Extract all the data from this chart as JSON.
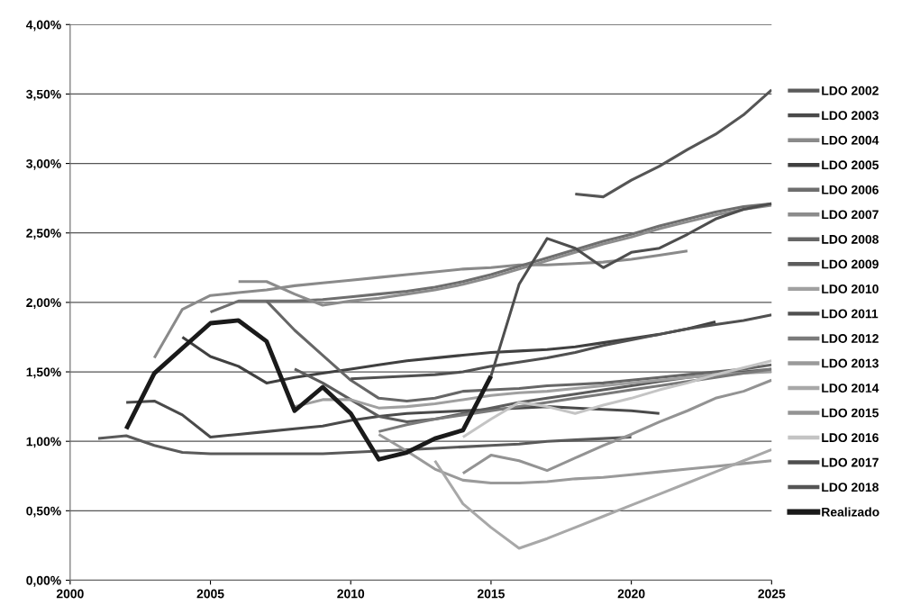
{
  "chart_data": {
    "type": "line",
    "xlim": [
      2000,
      2025
    ],
    "xticks": [
      2000,
      2005,
      2010,
      2015,
      2020,
      2025
    ],
    "ylim": [
      0,
      4
    ],
    "yticks": [
      {
        "value": 0,
        "label": "0,00%"
      },
      {
        "value": 0.5,
        "label": "0,50%"
      },
      {
        "value": 1,
        "label": "1,00%"
      },
      {
        "value": 1.5,
        "label": "1,50%"
      },
      {
        "value": 2,
        "label": "2,00%"
      },
      {
        "value": 2.5,
        "label": "2,50%"
      },
      {
        "value": 3,
        "label": "3,00%"
      },
      {
        "value": 3.5,
        "label": "3,50%"
      },
      {
        "value": 4,
        "label": "4,00%"
      }
    ],
    "grid": "y",
    "legend": "right",
    "marker": "none",
    "line_style": "solid",
    "series": [
      {
        "name": "LDO 2002",
        "color": "#5a5a5a",
        "x": [
          2001,
          2002,
          2003,
          2004,
          2005,
          2006,
          2007,
          2008,
          2009,
          2010,
          2011,
          2012,
          2013,
          2014,
          2015,
          2016,
          2017,
          2018,
          2019,
          2020
        ],
        "values": [
          1.02,
          1.04,
          0.97,
          0.92,
          0.91,
          0.91,
          0.91,
          0.91,
          0.91,
          0.92,
          0.93,
          0.94,
          0.95,
          0.96,
          0.97,
          0.98,
          1.0,
          1.01,
          1.02,
          1.03
        ]
      },
      {
        "name": "LDO 2003",
        "color": "#4a4a4a",
        "x": [
          2002,
          2003,
          2004,
          2005,
          2006,
          2007,
          2008,
          2009,
          2010,
          2011,
          2012,
          2013,
          2014,
          2015,
          2016,
          2017,
          2018,
          2019,
          2020,
          2021
        ],
        "values": [
          1.28,
          1.29,
          1.19,
          1.03,
          1.05,
          1.07,
          1.09,
          1.11,
          1.15,
          1.18,
          1.2,
          1.21,
          1.22,
          1.23,
          1.24,
          1.25,
          1.24,
          1.23,
          1.22,
          1.2
        ]
      },
      {
        "name": "LDO 2004",
        "color": "#8a8a8a",
        "x": [
          2003,
          2004,
          2005,
          2006,
          2007,
          2008,
          2009,
          2010,
          2011,
          2012,
          2013,
          2014,
          2015,
          2016,
          2017,
          2018,
          2019,
          2020,
          2021,
          2022
        ],
        "values": [
          1.6,
          1.95,
          2.05,
          2.07,
          2.09,
          2.12,
          2.14,
          2.16,
          2.18,
          2.2,
          2.22,
          2.24,
          2.25,
          2.27,
          2.27,
          2.28,
          2.29,
          2.31,
          2.34,
          2.37
        ]
      },
      {
        "name": "LDO 2005",
        "color": "#404040",
        "x": [
          2004,
          2005,
          2006,
          2007,
          2008,
          2009,
          2010,
          2011,
          2012,
          2013,
          2014,
          2015,
          2016,
          2017,
          2018,
          2019,
          2020,
          2021,
          2022,
          2023
        ],
        "values": [
          1.75,
          1.61,
          1.54,
          1.42,
          1.46,
          1.49,
          1.52,
          1.55,
          1.58,
          1.6,
          1.62,
          1.64,
          1.65,
          1.66,
          1.68,
          1.71,
          1.74,
          1.77,
          1.81,
          1.86
        ]
      },
      {
        "name": "LDO 2006",
        "color": "#6e6e6e",
        "x": [
          2005,
          2006,
          2007,
          2008,
          2009,
          2010,
          2011,
          2012,
          2013,
          2014,
          2015,
          2016,
          2017,
          2018,
          2019,
          2020,
          2021,
          2022,
          2023,
          2024,
          2025
        ],
        "values": [
          1.93,
          2.01,
          2.01,
          2.01,
          2.02,
          2.04,
          2.06,
          2.08,
          2.11,
          2.15,
          2.2,
          2.26,
          2.32,
          2.38,
          2.44,
          2.49,
          2.55,
          2.6,
          2.65,
          2.69,
          2.71
        ]
      },
      {
        "name": "LDO 2007",
        "color": "#8c8c8c",
        "x": [
          2006,
          2007,
          2008,
          2009,
          2010,
          2011,
          2012,
          2013,
          2014,
          2015,
          2016,
          2017,
          2018,
          2019,
          2020,
          2021,
          2022,
          2023,
          2024,
          2025
        ],
        "values": [
          2.15,
          2.15,
          2.06,
          1.98,
          2.01,
          2.03,
          2.06,
          2.09,
          2.13,
          2.18,
          2.24,
          2.3,
          2.36,
          2.42,
          2.47,
          2.53,
          2.58,
          2.63,
          2.67,
          2.7
        ]
      },
      {
        "name": "LDO 2008",
        "color": "#666666",
        "x": [
          2007,
          2008,
          2009,
          2010,
          2011,
          2012,
          2013,
          2014,
          2015,
          2016,
          2017,
          2018,
          2019,
          2020,
          2021,
          2022,
          2023,
          2024,
          2025
        ],
        "values": [
          2.01,
          1.8,
          1.62,
          1.44,
          1.31,
          1.29,
          1.31,
          1.36,
          1.37,
          1.38,
          1.4,
          1.41,
          1.42,
          1.44,
          1.46,
          1.48,
          1.5,
          1.52,
          1.55
        ]
      },
      {
        "name": "LDO 2009",
        "color": "#5c5c5c",
        "x": [
          2008,
          2009,
          2010,
          2011,
          2012,
          2013,
          2014,
          2015,
          2016,
          2017,
          2018,
          2019,
          2020,
          2021,
          2022,
          2023,
          2024,
          2025
        ],
        "values": [
          1.52,
          1.42,
          1.3,
          1.18,
          1.14,
          1.16,
          1.2,
          1.24,
          1.28,
          1.31,
          1.34,
          1.37,
          1.4,
          1.43,
          1.46,
          1.48,
          1.5,
          1.52
        ]
      },
      {
        "name": "LDO 2010",
        "color": "#a0a0a0",
        "x": [
          2008,
          2009,
          2010,
          2011,
          2012,
          2013,
          2014,
          2015,
          2016,
          2017,
          2018,
          2019,
          2020,
          2021,
          2022,
          2023,
          2024,
          2025
        ],
        "values": [
          1.25,
          1.3,
          1.3,
          1.24,
          1.25,
          1.27,
          1.3,
          1.33,
          1.35,
          1.36,
          1.38,
          1.4,
          1.42,
          1.44,
          1.46,
          1.48,
          1.49,
          1.5
        ]
      },
      {
        "name": "LDO 2011",
        "color": "#505050",
        "x": [
          2010,
          2011,
          2012,
          2013,
          2014,
          2015,
          2016,
          2017,
          2018,
          2019,
          2020,
          2021,
          2022,
          2023,
          2024,
          2025
        ],
        "values": [
          1.45,
          1.46,
          1.47,
          1.48,
          1.5,
          1.54,
          1.57,
          1.6,
          1.64,
          1.69,
          1.73,
          1.77,
          1.81,
          1.84,
          1.87,
          1.91
        ]
      },
      {
        "name": "LDO 2012",
        "color": "#7a7a7a",
        "x": [
          2011,
          2012,
          2013,
          2014,
          2015,
          2016,
          2017,
          2018,
          2019,
          2020,
          2021,
          2022,
          2023,
          2024,
          2025
        ],
        "values": [
          1.07,
          1.12,
          1.16,
          1.19,
          1.22,
          1.25,
          1.28,
          1.31,
          1.34,
          1.37,
          1.4,
          1.43,
          1.46,
          1.49,
          1.52
        ]
      },
      {
        "name": "LDO 2013",
        "color": "#9a9a9a",
        "x": [
          2011,
          2012,
          2013,
          2014,
          2015,
          2016,
          2017,
          2018,
          2019,
          2020,
          2021,
          2022,
          2023,
          2024,
          2025
        ],
        "values": [
          1.05,
          0.93,
          0.8,
          0.72,
          0.7,
          0.7,
          0.71,
          0.73,
          0.74,
          0.76,
          0.78,
          0.8,
          0.82,
          0.84,
          0.86
        ]
      },
      {
        "name": "LDO 2014",
        "color": "#a8a8a8",
        "x": [
          2013,
          2014,
          2015,
          2016,
          2017,
          2018,
          2019,
          2020,
          2021,
          2022,
          2023,
          2024,
          2025
        ],
        "values": [
          0.86,
          0.55,
          0.38,
          0.23,
          0.3,
          0.38,
          0.46,
          0.54,
          0.62,
          0.7,
          0.78,
          0.86,
          0.94
        ]
      },
      {
        "name": "LDO 2015",
        "color": "#939393",
        "x": [
          2014,
          2015,
          2016,
          2017,
          2018,
          2019,
          2020,
          2021,
          2022,
          2023,
          2024,
          2025
        ],
        "values": [
          0.77,
          0.9,
          0.86,
          0.79,
          0.88,
          0.97,
          1.05,
          1.14,
          1.22,
          1.31,
          1.36,
          1.44
        ]
      },
      {
        "name": "LDO 2016",
        "color": "#c4c4c4",
        "x": [
          2014,
          2015,
          2016,
          2017,
          2018,
          2019,
          2020,
          2021,
          2022,
          2023,
          2024,
          2025
        ],
        "values": [
          1.03,
          1.16,
          1.28,
          1.25,
          1.2,
          1.26,
          1.31,
          1.37,
          1.42,
          1.48,
          1.53,
          1.58
        ]
      },
      {
        "name": "LDO 2017",
        "color": "#4e4e4e",
        "x": [
          2015,
          2016,
          2017,
          2018,
          2019,
          2020,
          2021,
          2022,
          2023,
          2024,
          2025
        ],
        "values": [
          1.47,
          2.13,
          2.46,
          2.39,
          2.25,
          2.36,
          2.39,
          2.49,
          2.6,
          2.67,
          2.71
        ]
      },
      {
        "name": "LDO 2018",
        "color": "#555555",
        "x": [
          2018,
          2019,
          2020,
          2021,
          2022,
          2023,
          2024,
          2025
        ],
        "values": [
          2.78,
          2.76,
          2.88,
          2.98,
          3.1,
          3.21,
          3.35,
          3.53
        ]
      },
      {
        "name": "Realizado",
        "color": "#1a1a1a",
        "x": [
          2002,
          2003,
          2004,
          2005,
          2006,
          2007,
          2008,
          2009,
          2010,
          2011,
          2012,
          2013,
          2014,
          2015
        ],
        "values": [
          1.09,
          1.49,
          1.67,
          1.85,
          1.87,
          1.72,
          1.22,
          1.39,
          1.2,
          0.87,
          0.92,
          1.02,
          1.08,
          1.47
        ]
      }
    ]
  }
}
